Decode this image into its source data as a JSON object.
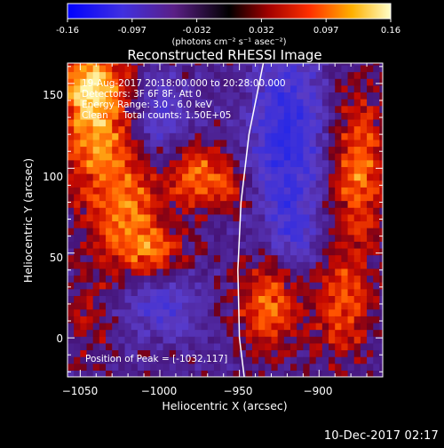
{
  "footer": {
    "timestamp": "10-Dec-2017 02:17"
  },
  "colorbar": {
    "ticks": [
      "-0.16",
      "-0.097",
      "-0.032",
      "0.032",
      "0.097",
      "0.16"
    ],
    "unit_label": "(photons cm⁻² s⁻¹ asec⁻²)",
    "range": [
      -0.16,
      0.16
    ]
  },
  "chart_data": {
    "type": "heatmap",
    "title": "Reconstructed RHESSI Image",
    "xlabel": "Heliocentric X (arcsec)",
    "ylabel": "Heliocentric Y (arcsec)",
    "xlim": [
      -1058,
      -860
    ],
    "ylim": [
      -23,
      162
    ],
    "x_ticks": [
      -1050,
      -1000,
      -950,
      -900
    ],
    "y_ticks": [
      0,
      50,
      100,
      150
    ],
    "x_tick_labels": [
      "−1050",
      "−1000",
      "−950",
      "−900"
    ],
    "y_tick_labels": [
      "0",
      "50",
      "100",
      "150"
    ],
    "annotations": [
      "19-Aug-2017 20:18:00.000 to 20:28:00.000",
      "Detectors: 3F 6F 8F, Att 0",
      "Energy Range: 3.0 - 6.0 keV",
      "Clean     Total counts: 1.50E+05",
      "Position of Peak = [-1032,117]"
    ],
    "peak": {
      "x": -1032,
      "y": 117
    },
    "sources": [
      {
        "x": -1040,
        "y": 130,
        "sx": 16,
        "sy": 30,
        "amp": 0.13
      },
      {
        "x": -1045,
        "y": 150,
        "sx": 12,
        "sy": 12,
        "amp": 0.08
      },
      {
        "x": -1020,
        "y": 70,
        "sx": 16,
        "sy": 28,
        "amp": 0.11
      },
      {
        "x": -1000,
        "y": 50,
        "sx": 12,
        "sy": 10,
        "amp": 0.07
      },
      {
        "x": -975,
        "y": 95,
        "sx": 14,
        "sy": 12,
        "amp": 0.12
      },
      {
        "x": -955,
        "y": 85,
        "sx": 8,
        "sy": 8,
        "amp": 0.05
      },
      {
        "x": -1045,
        "y": 10,
        "sx": 8,
        "sy": 16,
        "amp": 0.05
      },
      {
        "x": -930,
        "y": 20,
        "sx": 14,
        "sy": 18,
        "amp": 0.11
      },
      {
        "x": -875,
        "y": 100,
        "sx": 12,
        "sy": 32,
        "amp": 0.11
      },
      {
        "x": -885,
        "y": 20,
        "sx": 12,
        "sy": 22,
        "amp": 0.09
      },
      {
        "x": -1000,
        "y": 130,
        "sx": 14,
        "sy": 18,
        "amp": -0.08
      },
      {
        "x": -1000,
        "y": 20,
        "sx": 18,
        "sy": 14,
        "amp": -0.09
      },
      {
        "x": -920,
        "y": 120,
        "sx": 16,
        "sy": 40,
        "amp": -0.13
      },
      {
        "x": -915,
        "y": 60,
        "sx": 8,
        "sy": 14,
        "amp": -0.06
      }
    ],
    "limb_arc": [
      [
        -935,
        162
      ],
      [
        -944,
        120
      ],
      [
        -949,
        80
      ],
      [
        -951,
        40
      ],
      [
        -950,
        0
      ],
      [
        -947,
        -23
      ]
    ]
  }
}
